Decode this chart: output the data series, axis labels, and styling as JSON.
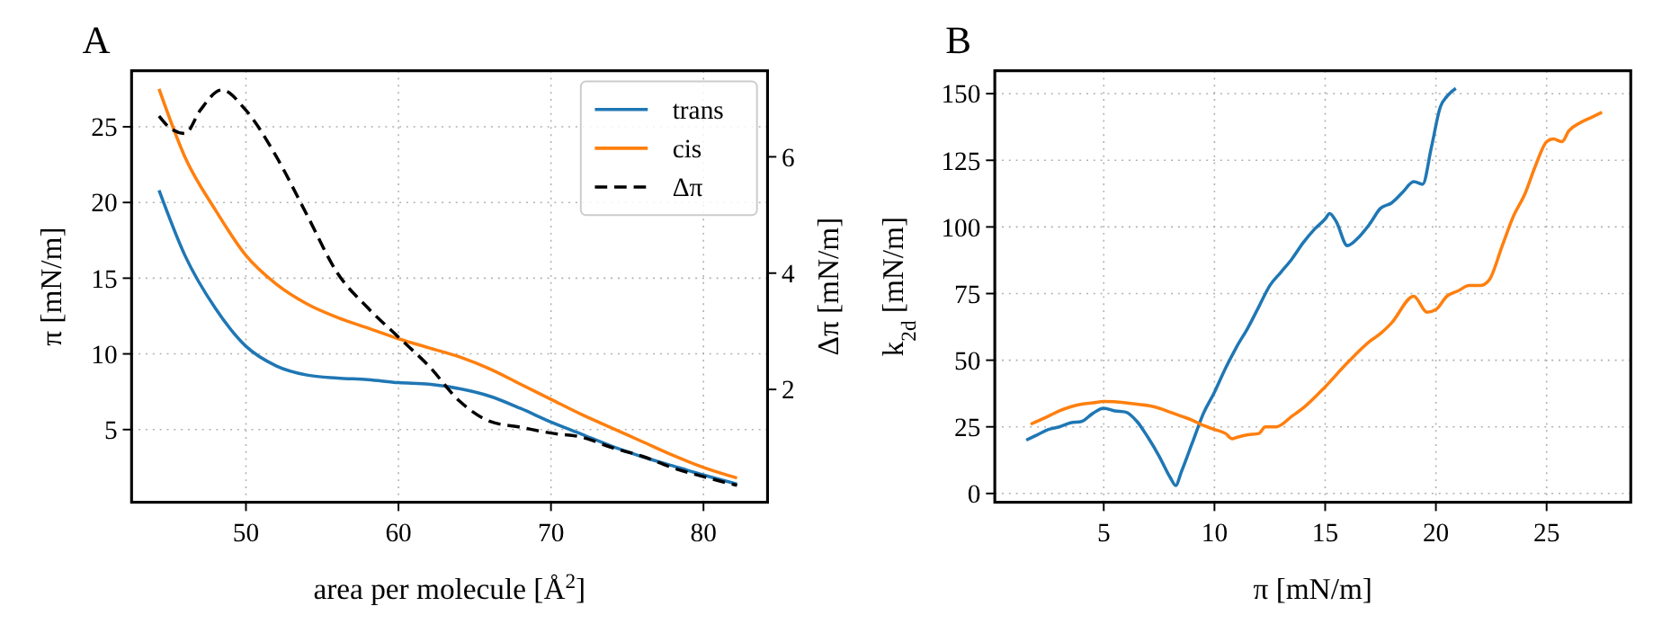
{
  "chart_data": [
    {
      "type": "line",
      "title": "A",
      "xlabel": "area per molecule [Å$^{2}$]",
      "ylabel": "π [mN/m]",
      "y2label": "Δπ [mN/m]",
      "xlim": [
        42.5,
        84.2
      ],
      "xticks": [
        50,
        60,
        70,
        80
      ],
      "ylim": [
        0.2,
        28.7
      ],
      "yticks": [
        5,
        10,
        15,
        20,
        25
      ],
      "y2lim": [
        0.06,
        7.48
      ],
      "y2ticks": [
        2,
        4,
        6
      ],
      "grid": true,
      "legend": "top right",
      "series": [
        {
          "name": "trans",
          "color": "#1f77b4",
          "x": [
            44.3,
            46,
            48,
            50,
            52,
            54,
            56,
            58,
            60,
            62,
            64,
            66,
            68,
            70,
            72,
            74,
            76,
            78,
            80,
            82.2
          ],
          "values": [
            20.8,
            16.5,
            13,
            10.5,
            9.2,
            8.6,
            8.4,
            8.3,
            8.1,
            8.0,
            7.7,
            7.2,
            6.4,
            5.5,
            4.7,
            3.9,
            3.2,
            2.6,
            2.0,
            1.4
          ]
        },
        {
          "name": "cis",
          "color": "#ff7f0e",
          "x": [
            44.3,
            46,
            48,
            50,
            52,
            54,
            56,
            58,
            60,
            62,
            64,
            66,
            68,
            70,
            72,
            74,
            76,
            78,
            80,
            82.2
          ],
          "values": [
            27.5,
            23,
            19.5,
            16.5,
            14.6,
            13.3,
            12.4,
            11.7,
            11.0,
            10.4,
            9.8,
            9.0,
            8.0,
            7.0,
            6.0,
            5.1,
            4.2,
            3.3,
            2.5,
            1.8
          ]
        },
        {
          "name": "Δπ",
          "color": "#000000",
          "axis": "y2",
          "line_style": "dashed",
          "x": [
            44.3,
            45,
            46,
            47,
            48.4,
            50,
            52,
            54,
            56,
            58,
            60,
            62,
            64,
            66,
            68,
            70,
            72,
            74,
            76,
            78,
            80,
            82.2
          ],
          "values": [
            6.7,
            6.5,
            6.4,
            6.8,
            7.15,
            6.8,
            6.0,
            5.0,
            4.0,
            3.4,
            2.9,
            2.4,
            1.8,
            1.45,
            1.35,
            1.25,
            1.18,
            1.0,
            0.85,
            0.65,
            0.5,
            0.35
          ]
        }
      ]
    },
    {
      "type": "line",
      "title": "B",
      "xlabel": "π [mN/m]",
      "ylabel": "k$_{2d}$ [mN/m]",
      "xlim": [
        0.08,
        28.8
      ],
      "xticks": [
        5,
        10,
        15,
        20,
        25
      ],
      "ylim": [
        -3.3,
        158.6
      ],
      "yticks": [
        0,
        25,
        50,
        75,
        100,
        125,
        150
      ],
      "grid": true,
      "series": [
        {
          "color": "#1f77b4",
          "x": [
            1.5,
            2,
            2.5,
            3,
            3.5,
            4,
            4.5,
            5,
            5.5,
            6,
            6.5,
            7,
            7.5,
            8,
            8.25,
            8.5,
            9,
            9.5,
            10,
            10.5,
            11,
            11.5,
            12,
            12.5,
            13,
            13.5,
            14,
            14.5,
            15,
            15.2,
            15.5,
            16,
            16.5,
            17,
            17.5,
            18,
            18.5,
            19,
            19.4,
            19.8,
            20.2,
            20.5,
            20.9
          ],
          "values": [
            20,
            22,
            24,
            25,
            26.5,
            27,
            30,
            32,
            31,
            30.5,
            27,
            21,
            14,
            6,
            3,
            8,
            19,
            30,
            38,
            47,
            55,
            62,
            70,
            78,
            83,
            88,
            94,
            99,
            103,
            105,
            102,
            93,
            96,
            101,
            107,
            109,
            113,
            117,
            116,
            130,
            145,
            149,
            152
          ]
        },
        {
          "color": "#ff7f0e",
          "x": [
            1.7,
            2.5,
            3,
            3.5,
            4,
            4.5,
            5,
            6,
            6.5,
            7,
            7.5,
            8,
            8.5,
            9,
            9.5,
            10,
            10.5,
            10.8,
            11,
            11.5,
            12,
            12.3,
            12.8,
            13.5,
            14,
            15,
            16,
            17,
            17.5,
            18,
            19,
            19.6,
            20,
            20.5,
            21,
            21.5,
            22,
            22.4,
            23,
            23.5,
            24,
            24.5,
            25,
            25.3,
            25.7,
            26,
            26.5,
            27,
            27.5
          ],
          "values": [
            26,
            29,
            31,
            32.5,
            33.5,
            34,
            34.5,
            34,
            33.5,
            33,
            32,
            30.5,
            29,
            27.5,
            25.5,
            24,
            22.5,
            20.5,
            21,
            22,
            22.5,
            25,
            25,
            29,
            32,
            40,
            49,
            57,
            60,
            64,
            74,
            68,
            69,
            74,
            76,
            78,
            78,
            80,
            93,
            104,
            112,
            123,
            132,
            133,
            132,
            136,
            139,
            141,
            143
          ]
        }
      ]
    }
  ]
}
